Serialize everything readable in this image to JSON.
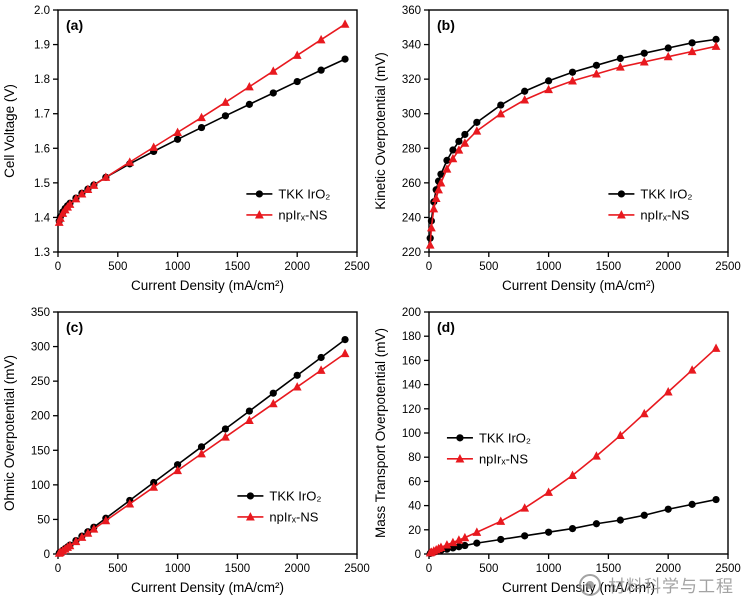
{
  "watermark": {
    "text": "材料科学与工程"
  },
  "chart_data": [
    {
      "panel": "(a)",
      "type": "line",
      "title": "",
      "xlabel": "Current Density (mA/cm²)",
      "ylabel": "Cell Voltage (V)",
      "xlim": [
        0,
        2500
      ],
      "ylim": [
        1.3,
        2.0
      ],
      "xticks": [
        0,
        500,
        1000,
        1500,
        2000,
        2500
      ],
      "yticks": [
        1.3,
        1.4,
        1.5,
        1.6,
        1.7,
        1.8,
        1.9,
        2.0
      ],
      "ydecimals": 1,
      "grid": false,
      "legend_pos": [
        0.63,
        0.76
      ],
      "x": [
        10,
        20,
        40,
        60,
        80,
        100,
        150,
        200,
        250,
        300,
        400,
        600,
        800,
        1000,
        1200,
        1400,
        1600,
        1800,
        2000,
        2200,
        2400
      ],
      "series": [
        {
          "name": "TKK IrO₂",
          "color": "#000000",
          "marker": "circle",
          "values": [
            1.39,
            1.402,
            1.416,
            1.426,
            1.434,
            1.441,
            1.456,
            1.47,
            1.482,
            1.494,
            1.516,
            1.555,
            1.591,
            1.626,
            1.66,
            1.694,
            1.727,
            1.76,
            1.793,
            1.826,
            1.858
          ]
        },
        {
          "name": "npIrₓ-NS",
          "color": "#e8191f",
          "marker": "triangle",
          "values": [
            1.386,
            1.398,
            1.412,
            1.422,
            1.43,
            1.438,
            1.454,
            1.468,
            1.481,
            1.493,
            1.516,
            1.56,
            1.603,
            1.646,
            1.689,
            1.733,
            1.778,
            1.823,
            1.869,
            1.914,
            1.959
          ]
        }
      ]
    },
    {
      "panel": "(b)",
      "type": "line",
      "title": "",
      "xlabel": "Current Density (mA/cm²)",
      "ylabel": "Kinetic Overpotential (mV)",
      "xlim": [
        0,
        2500
      ],
      "ylim": [
        220,
        360
      ],
      "xticks": [
        0,
        500,
        1000,
        1500,
        2000,
        2500
      ],
      "yticks": [
        220,
        240,
        260,
        280,
        300,
        320,
        340,
        360
      ],
      "ydecimals": 0,
      "grid": false,
      "legend_pos": [
        0.6,
        0.76
      ],
      "x": [
        10,
        20,
        40,
        60,
        80,
        100,
        150,
        200,
        250,
        300,
        400,
        600,
        800,
        1000,
        1200,
        1400,
        1600,
        1800,
        2000,
        2200,
        2400
      ],
      "series": [
        {
          "name": "TKK IrO₂",
          "color": "#000000",
          "marker": "circle",
          "values": [
            228,
            238,
            249,
            256,
            261,
            265,
            273,
            279,
            284,
            288,
            295,
            305,
            313,
            319,
            324,
            328,
            332,
            335,
            338,
            341,
            343
          ]
        },
        {
          "name": "npIrₓ-NS",
          "color": "#e8191f",
          "marker": "triangle",
          "values": [
            224,
            234,
            245,
            251,
            256,
            260,
            268,
            274,
            279,
            283,
            290,
            300,
            308,
            314,
            319,
            323,
            327,
            330,
            333,
            336,
            339
          ]
        }
      ]
    },
    {
      "panel": "(c)",
      "type": "line",
      "title": "",
      "xlabel": "Current Density (mA/cm²)",
      "ylabel": "Ohmic Overpotential (mV)",
      "xlim": [
        0,
        2500
      ],
      "ylim": [
        0,
        350
      ],
      "xticks": [
        0,
        500,
        1000,
        1500,
        2000,
        2500
      ],
      "yticks": [
        0,
        50,
        100,
        150,
        200,
        250,
        300,
        350
      ],
      "ydecimals": 0,
      "grid": false,
      "legend_pos": [
        0.6,
        0.76
      ],
      "x": [
        10,
        20,
        40,
        60,
        80,
        100,
        150,
        200,
        250,
        300,
        400,
        600,
        800,
        1000,
        1200,
        1400,
        1600,
        1800,
        2000,
        2200,
        2400
      ],
      "series": [
        {
          "name": "TKK IrO₂",
          "color": "#000000",
          "marker": "circle",
          "values": [
            1.3,
            2.6,
            5.2,
            7.8,
            10.3,
            12.9,
            19.4,
            25.8,
            32.3,
            38.8,
            51.7,
            77.5,
            103.4,
            129.2,
            155.0,
            180.9,
            206.7,
            232.6,
            258.4,
            284.2,
            310.1
          ]
        },
        {
          "name": "npIrₓ-NS",
          "color": "#e8191f",
          "marker": "triangle",
          "values": [
            1.2,
            2.4,
            4.8,
            7.2,
            9.7,
            12.1,
            18.1,
            24.2,
            30.2,
            36.2,
            48.3,
            72.5,
            96.6,
            120.8,
            145.0,
            169.1,
            193.3,
            217.4,
            241.6,
            265.8,
            290.0
          ]
        }
      ]
    },
    {
      "panel": "(d)",
      "type": "line",
      "title": "",
      "xlabel": "Current Density (mA/cm²)",
      "ylabel": "Mass Transport Overpotential (mV)",
      "xlim": [
        0,
        2500
      ],
      "ylim": [
        0,
        200
      ],
      "xticks": [
        0,
        500,
        1000,
        1500,
        2000,
        2500
      ],
      "yticks": [
        0,
        20,
        40,
        60,
        80,
        100,
        120,
        140,
        160,
        180,
        200
      ],
      "ydecimals": 0,
      "grid": false,
      "legend_pos": [
        0.06,
        0.52
      ],
      "x": [
        10,
        20,
        40,
        60,
        80,
        100,
        150,
        200,
        250,
        300,
        400,
        600,
        800,
        1000,
        1200,
        1400,
        1600,
        1800,
        2000,
        2200,
        2400
      ],
      "series": [
        {
          "name": "TKK IrO₂",
          "color": "#000000",
          "marker": "circle",
          "values": [
            0.5,
            1,
            1.5,
            2,
            2.5,
            3,
            4,
            5,
            6,
            7,
            9,
            12,
            15,
            18,
            21,
            25,
            28,
            32,
            37,
            41,
            45
          ]
        },
        {
          "name": "npIrₓ-NS",
          "color": "#e8191f",
          "marker": "triangle",
          "values": [
            1,
            1.5,
            2.5,
            3.5,
            4.5,
            5.5,
            7.5,
            9.5,
            11.5,
            13.5,
            18,
            27,
            38,
            51,
            65,
            81,
            98,
            116,
            134,
            152,
            170
          ]
        }
      ]
    }
  ]
}
